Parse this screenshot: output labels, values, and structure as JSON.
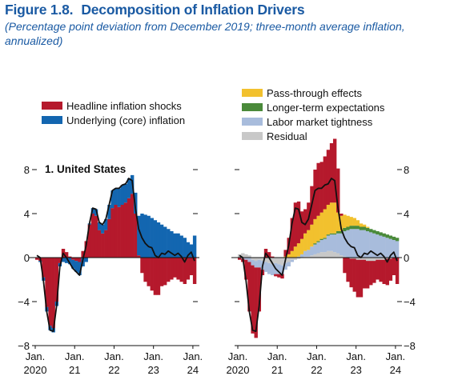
{
  "figure": {
    "number": "Figure 1.8.",
    "title": "Decomposition of Inflation Drivers",
    "subtitle": "(Percentage point deviation from December 2019; three-month average inflation, annualized)"
  },
  "legend_left": [
    {
      "label": "Headline inflation shocks",
      "color": "#b5192c"
    },
    {
      "label": "Underlying (core) inflation",
      "color": "#1366b0"
    }
  ],
  "legend_right": [
    {
      "label": "Pass-through effects",
      "color": "#f2c12e"
    },
    {
      "label": "Longer-term expectations",
      "color": "#4a8a3a"
    },
    {
      "label": "Labor market tightness",
      "color": "#a8bcdc"
    },
    {
      "label": "Residual",
      "color": "#c8c8c8"
    }
  ],
  "chart_data": {
    "type": "area",
    "panel_title": "1. United States",
    "x": [
      "2020-01",
      "2020-02",
      "2020-03",
      "2020-04",
      "2020-05",
      "2020-06",
      "2020-07",
      "2020-08",
      "2020-09",
      "2020-10",
      "2020-11",
      "2020-12",
      "2021-01",
      "2021-02",
      "2021-03",
      "2021-04",
      "2021-05",
      "2021-06",
      "2021-07",
      "2021-08",
      "2021-09",
      "2021-10",
      "2021-11",
      "2021-12",
      "2022-01",
      "2022-02",
      "2022-03",
      "2022-04",
      "2022-05",
      "2022-06",
      "2022-07",
      "2022-08",
      "2022-09",
      "2022-10",
      "2022-11",
      "2022-12",
      "2023-01",
      "2023-02",
      "2023-03",
      "2023-04",
      "2023-05",
      "2023-06",
      "2023-07",
      "2023-08",
      "2023-09",
      "2023-10",
      "2023-11",
      "2023-12",
      "2024-01"
    ],
    "x_tick_labels": [
      [
        "Jan.",
        "2020"
      ],
      [
        "Jan.",
        "21"
      ],
      [
        "Jan.",
        "22"
      ],
      [
        "Jan.",
        "23"
      ],
      [
        "Jan.",
        "24"
      ]
    ],
    "x_tick_dates": [
      "2020-01",
      "2021-01",
      "2022-01",
      "2023-01",
      "2024-01"
    ],
    "ylim": [
      -8,
      8
    ],
    "y_ticks": [
      -8,
      -4,
      0,
      4,
      8
    ],
    "y_tick_labels": [
      "−8",
      "−4",
      "0",
      "4",
      "8"
    ],
    "grid": false,
    "left_panel": {
      "series": [
        {
          "name": "Headline inflation shocks",
          "color": "#b5192c",
          "values": [
            -0.2,
            -0.3,
            -1.8,
            -4.5,
            -6.2,
            -6.4,
            -4.0,
            -0.5,
            0.8,
            0.5,
            0.1,
            -0.2,
            -0.3,
            -0.4,
            0.6,
            1.5,
            3.0,
            4.0,
            3.8,
            2.5,
            2.2,
            2.5,
            3.5,
            4.5,
            4.8,
            4.6,
            4.8,
            5.0,
            5.4,
            5.8,
            4.0,
            0.2,
            -1.4,
            -2.2,
            -2.6,
            -3.0,
            -3.4,
            -3.4,
            -2.6,
            -2.5,
            -2.2,
            -2.0,
            -1.8,
            -2.0,
            -2.2,
            -2.4,
            -2.0,
            -1.6,
            -2.4
          ]
        },
        {
          "name": "Underlying (core) inflation",
          "color": "#1366b0",
          "values": [
            0.0,
            -0.1,
            -0.3,
            -0.4,
            -0.4,
            -0.4,
            -0.4,
            -0.3,
            -0.4,
            -0.5,
            -0.6,
            -0.8,
            -1.0,
            -1.2,
            -0.8,
            -0.4,
            0.1,
            0.5,
            0.6,
            0.7,
            0.8,
            1.0,
            1.3,
            1.6,
            1.5,
            1.7,
            1.8,
            1.7,
            1.8,
            1.7,
            1.9,
            3.6,
            4.0,
            3.9,
            3.8,
            3.6,
            3.4,
            3.2,
            3.0,
            2.8,
            2.6,
            2.4,
            2.2,
            2.2,
            2.0,
            1.8,
            1.4,
            1.2,
            2.0
          ]
        }
      ],
      "headline_inflation_line": [
        0.2,
        0.0,
        -2.1,
        -4.9,
        -6.6,
        -6.7,
        -4.4,
        -0.8,
        0.4,
        0.0,
        -0.5,
        -1.0,
        -1.3,
        -1.6,
        -0.2,
        1.1,
        3.1,
        4.5,
        4.4,
        3.2,
        3.0,
        3.5,
        4.8,
        6.1,
        6.3,
        6.3,
        6.6,
        6.7,
        7.2,
        7.0,
        4.5,
        2.6,
        1.8,
        1.3,
        1.0,
        0.9,
        0.2,
        0.0,
        0.4,
        0.3,
        0.6,
        0.4,
        0.2,
        0.4,
        0.1,
        -0.4,
        0.2,
        0.5,
        -0.3
      ]
    },
    "right_panel": {
      "series": [
        {
          "name": "Residual",
          "color": "#c8c8c8",
          "values": [
            0.3,
            0.4,
            0.3,
            0.2,
            -0.2,
            -0.3,
            -0.2,
            -0.3,
            -0.4,
            -0.5,
            -0.6,
            -0.5,
            -0.6,
            -0.7,
            -0.5,
            -0.4,
            -0.2,
            -0.2,
            -0.1,
            0.0,
            0.1,
            0.1,
            0.2,
            0.3,
            0.4,
            0.5,
            0.5,
            0.6,
            0.6,
            0.5,
            0.4,
            0.2,
            0.1,
            0.0,
            -0.1,
            -0.1,
            -0.2,
            -0.2,
            -0.2,
            -0.3,
            -0.3,
            -0.3,
            -0.2,
            -0.2,
            -0.2,
            -0.1,
            -0.1,
            0.0,
            0.0
          ]
        },
        {
          "name": "Labor market tightness",
          "color": "#a8bcdc",
          "values": [
            0.0,
            -0.1,
            -0.2,
            -0.4,
            -0.5,
            -0.6,
            -0.7,
            -0.8,
            -0.9,
            -1.0,
            -1.0,
            -1.0,
            -0.9,
            -0.8,
            -0.6,
            -0.4,
            -0.2,
            0.0,
            0.1,
            0.3,
            0.5,
            0.6,
            0.8,
            0.9,
            1.0,
            1.1,
            1.2,
            1.4,
            1.5,
            1.6,
            1.8,
            2.0,
            2.3,
            2.5,
            2.6,
            2.6,
            2.6,
            2.5,
            2.5,
            2.4,
            2.3,
            2.2,
            2.1,
            2.0,
            1.9,
            1.8,
            1.7,
            1.6,
            1.5
          ]
        },
        {
          "name": "Longer-term expectations",
          "color": "#4a8a3a",
          "values": [
            0.0,
            0.0,
            0.0,
            0.0,
            0.0,
            0.0,
            0.0,
            0.0,
            0.0,
            0.0,
            0.0,
            0.0,
            0.0,
            0.0,
            0.0,
            0.0,
            0.0,
            0.0,
            0.0,
            0.0,
            0.0,
            0.0,
            0.0,
            0.1,
            0.1,
            0.1,
            0.1,
            0.1,
            0.1,
            0.1,
            0.2,
            0.2,
            0.3,
            0.3,
            0.3,
            0.3,
            0.3,
            0.3,
            0.3,
            0.3,
            0.3,
            0.3,
            0.3,
            0.3,
            0.3,
            0.3,
            0.3,
            0.3,
            0.3
          ]
        },
        {
          "name": "Pass-through effects",
          "color": "#f2c12e",
          "values": [
            0.0,
            0.0,
            0.0,
            0.0,
            0.0,
            0.0,
            0.0,
            0.0,
            0.0,
            0.0,
            0.0,
            0.0,
            0.0,
            0.0,
            0.1,
            0.3,
            0.6,
            1.0,
            1.2,
            1.4,
            1.6,
            1.8,
            2.0,
            2.2,
            2.3,
            2.4,
            2.6,
            2.7,
            2.8,
            2.8,
            1.7,
            1.4,
            1.2,
            1.0,
            0.8,
            0.7,
            0.5,
            0.3,
            0.2,
            0.1,
            0.0,
            0.0,
            0.0,
            0.0,
            0.0,
            0.0,
            0.0,
            0.0,
            0.0
          ]
        },
        {
          "name": "Headline inflation shocks",
          "color": "#b5192c",
          "values": [
            -0.2,
            -0.3,
            -1.8,
            -4.5,
            -6.2,
            -6.4,
            -4.0,
            -0.5,
            0.8,
            0.5,
            0.1,
            -0.2,
            -0.3,
            -0.4,
            0.6,
            1.5,
            3.0,
            4.0,
            3.8,
            2.5,
            2.2,
            2.5,
            3.5,
            4.5,
            4.8,
            4.6,
            4.8,
            5.0,
            5.4,
            5.8,
            4.0,
            0.2,
            -1.4,
            -2.2,
            -2.6,
            -3.0,
            -3.4,
            -3.4,
            -2.6,
            -2.5,
            -2.2,
            -2.0,
            -1.8,
            -2.0,
            -2.2,
            -2.4,
            -2.0,
            -1.6,
            -2.4
          ]
        }
      ],
      "headline_inflation_line": [
        0.2,
        0.0,
        -2.1,
        -4.9,
        -6.6,
        -6.7,
        -4.4,
        -0.8,
        0.4,
        0.0,
        -0.5,
        -1.0,
        -1.3,
        -1.6,
        -0.2,
        1.1,
        3.1,
        4.5,
        4.4,
        3.2,
        3.0,
        3.5,
        4.8,
        6.1,
        6.3,
        6.3,
        6.6,
        6.7,
        7.2,
        7.0,
        4.5,
        2.6,
        1.8,
        1.3,
        1.0,
        0.9,
        0.2,
        0.0,
        0.4,
        0.3,
        0.6,
        0.4,
        0.2,
        0.4,
        0.1,
        -0.4,
        0.2,
        0.5,
        -0.3
      ]
    }
  }
}
